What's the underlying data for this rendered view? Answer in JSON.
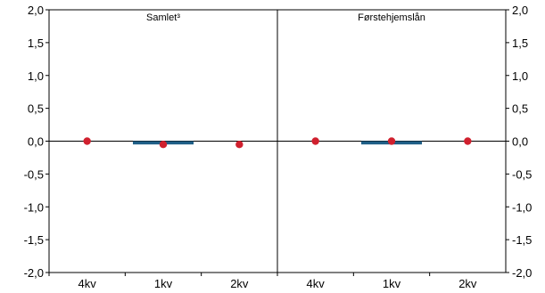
{
  "chart_data": {
    "type": "bar",
    "y_ticks": [
      "2,0",
      "1,5",
      "1,0",
      "0,5",
      "0,0",
      "-0,5",
      "-1,0",
      "-1,5",
      "-2,0"
    ],
    "ylim": [
      -2.0,
      2.0
    ],
    "grid": false,
    "colors": {
      "bar": "#1f5f87",
      "dot": "#d0202e",
      "axis": "#000000"
    },
    "panels": [
      {
        "title": "Samlet³",
        "categories": [
          "4kv",
          "1kv",
          "2kv"
        ],
        "bar_values": [
          0.0,
          -0.05,
          0.0
        ],
        "dot_values": [
          0.0,
          -0.05,
          -0.05
        ]
      },
      {
        "title": "Førstehjemslån",
        "categories": [
          "4kv",
          "1kv",
          "2kv"
        ],
        "bar_values": [
          0.0,
          -0.05,
          0.0
        ],
        "dot_values": [
          0.0,
          0.0,
          0.0
        ]
      }
    ]
  }
}
